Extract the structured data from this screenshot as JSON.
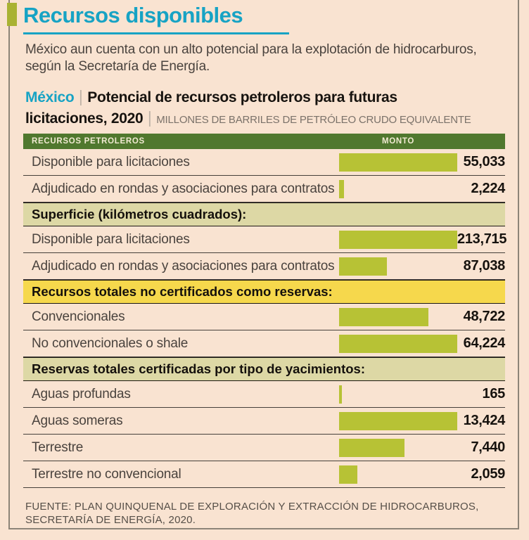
{
  "colors": {
    "background": "#f9e3d1",
    "teal": "#17a3c4",
    "accent_olive": "#a9b233",
    "table_header_green": "#50782e",
    "table_header_text": "#f1ead2",
    "bar_green": "#b7c235",
    "band_olive": "#ddd8a5",
    "band_yellow": "#f6d84c"
  },
  "header": {
    "title": "Recursos disponibles",
    "intro_line1": "México aun cuenta con un alto potencial para la explotación de hidrocarburos,",
    "intro_line2": "según la Secretaría de Energía."
  },
  "kicker": {
    "region": "México",
    "separator": "|",
    "title": "Potencial de recursos petroleros para futuras licitaciones, 2020",
    "unit": "MILLONES DE BARRILES DE PETRÓLEO CRUDO EQUIVALENTE"
  },
  "table": {
    "column_label": "RECURSOS PETROLEROS",
    "column_amount": "MONTO"
  },
  "source": {
    "line1": "FUENTE: PLAN QUINQUENAL DE EXPLORACIÓN Y EXTRACCIÓN DE HIDROCARBUROS,",
    "line2": "SECRETARÍA DE ENERGÍA, 2020."
  },
  "chart_data": {
    "type": "bar",
    "title": "México — Potencial de recursos petroleros para futuras licitaciones, 2020",
    "unit": "Millones de barriles de petróleo crudo equivalente",
    "orientation": "horizontal",
    "bar_scaling": "normalized per section; longest bar in each section = 168px",
    "groups": [
      {
        "section": null,
        "style": null,
        "items": [
          {
            "label": "Disponible para licitaciones",
            "value": 55033,
            "display": "55,033"
          },
          {
            "label": "Adjudicado en rondas y asociaciones para contratos",
            "value": 2224,
            "display": "2,224"
          }
        ]
      },
      {
        "section": "Superficie (kilómetros cuadrados):",
        "style": "olive",
        "items": [
          {
            "label": "Disponible para licitaciones",
            "value": 213715,
            "display": "213,715"
          },
          {
            "label": "Adjudicado en rondas y asociaciones para contratos",
            "value": 87038,
            "display": "87,038"
          }
        ]
      },
      {
        "section": "Recursos totales no certificados como reservas:",
        "style": "yellow",
        "items": [
          {
            "label": "Convencionales",
            "value": 48722,
            "display": "48,722"
          },
          {
            "label": "No convencionales o shale",
            "value": 64224,
            "display": "64,224"
          }
        ]
      },
      {
        "section": "Reservas totales certificadas por tipo de yacimientos:",
        "style": "olive",
        "items": [
          {
            "label": "Aguas profundas",
            "value": 165,
            "display": "165"
          },
          {
            "label": "Aguas someras",
            "value": 13424,
            "display": "13,424"
          },
          {
            "label": "Terrestre",
            "value": 7440,
            "display": "7,440"
          },
          {
            "label": "Terrestre no convencional",
            "value": 2059,
            "display": "2,059"
          }
        ]
      }
    ]
  }
}
